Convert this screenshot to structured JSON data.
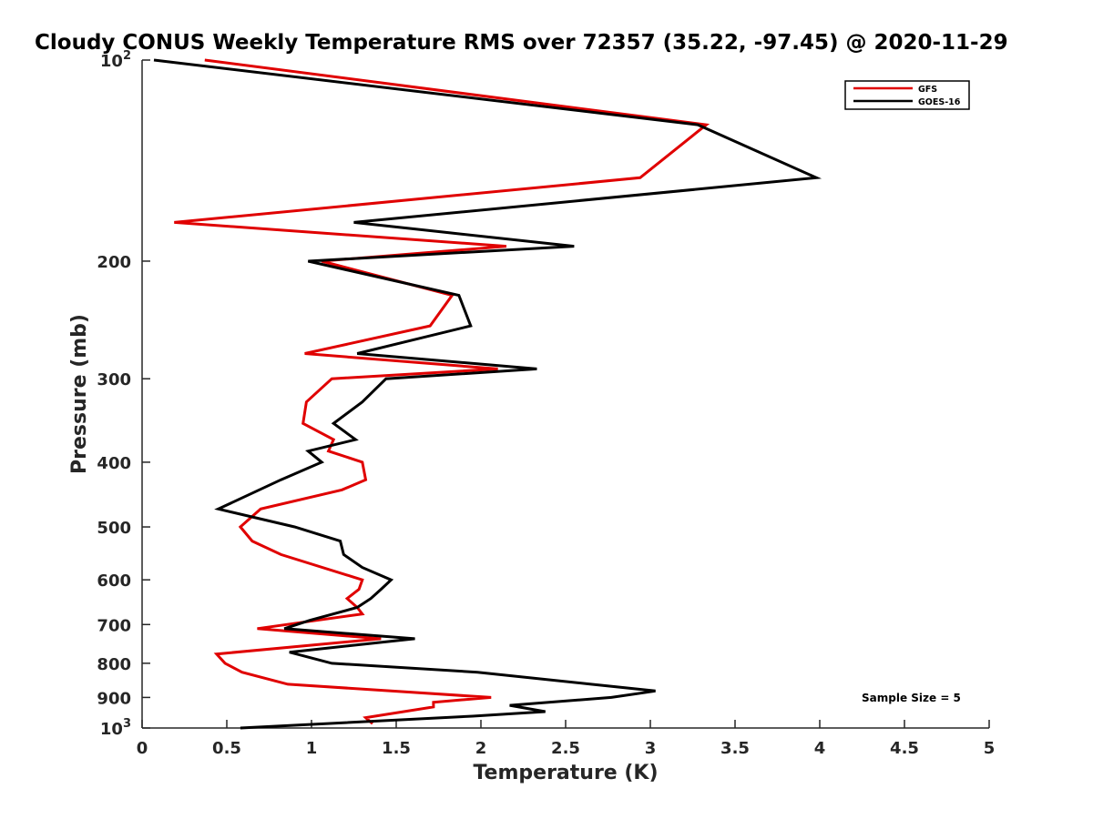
{
  "chart_data": {
    "type": "line",
    "title": "Cloudy CONUS Weekly Temperature RMS over 72357 (35.22, -97.45) @ 2020-11-29",
    "xlabel": "Temperature (K)",
    "ylabel": "Pressure (mb)",
    "xlim": [
      0,
      5
    ],
    "ylim": [
      100,
      1000
    ],
    "yscale": "log",
    "y_reversed": true,
    "x_ticks": [
      "0",
      "0.5",
      "1",
      "1.5",
      "2",
      "2.5",
      "3",
      "3.5",
      "4",
      "4.5",
      "5"
    ],
    "y_ticks": [
      {
        "value": 100,
        "base": "10",
        "exp": "2"
      },
      {
        "value": 200,
        "label": "200"
      },
      {
        "value": 300,
        "label": "300"
      },
      {
        "value": 400,
        "label": "400"
      },
      {
        "value": 500,
        "label": "500"
      },
      {
        "value": 600,
        "label": "600"
      },
      {
        "value": 700,
        "label": "700"
      },
      {
        "value": 800,
        "label": "800"
      },
      {
        "value": 900,
        "label": "900"
      },
      {
        "value": 1000,
        "base": "10",
        "exp": "3"
      }
    ],
    "grid": false,
    "legend_position": "top-right",
    "annotation": "Sample Size = 5",
    "series": [
      {
        "name": "GFS",
        "color": "#e00000",
        "points": [
          [
            0.37,
            100
          ],
          [
            3.33,
            125
          ],
          [
            2.94,
            150
          ],
          [
            0.19,
            175
          ],
          [
            2.15,
            190
          ],
          [
            1.06,
            200
          ],
          [
            1.83,
            225
          ],
          [
            1.7,
            250
          ],
          [
            0.96,
            275
          ],
          [
            2.1,
            290
          ],
          [
            1.12,
            300
          ],
          [
            0.97,
            325
          ],
          [
            0.95,
            350
          ],
          [
            1.13,
            370
          ],
          [
            1.1,
            385
          ],
          [
            1.3,
            400
          ],
          [
            1.32,
            425
          ],
          [
            1.18,
            440
          ],
          [
            0.7,
            470
          ],
          [
            0.58,
            500
          ],
          [
            0.65,
            525
          ],
          [
            0.82,
            550
          ],
          [
            1.3,
            600
          ],
          [
            1.28,
            620
          ],
          [
            1.21,
            640
          ],
          [
            1.27,
            660
          ],
          [
            1.3,
            675
          ],
          [
            0.68,
            710
          ],
          [
            1.41,
            735
          ],
          [
            0.44,
            775
          ],
          [
            0.49,
            800
          ],
          [
            0.59,
            825
          ],
          [
            0.86,
            860
          ],
          [
            2.06,
            900
          ],
          [
            1.72,
            915
          ],
          [
            1.72,
            930
          ],
          [
            1.32,
            965
          ],
          [
            1.36,
            985
          ]
        ]
      },
      {
        "name": "GOES-16",
        "color": "#000000",
        "points": [
          [
            0.07,
            100
          ],
          [
            3.28,
            125
          ],
          [
            3.98,
            150
          ],
          [
            1.25,
            175
          ],
          [
            2.55,
            190
          ],
          [
            0.98,
            200
          ],
          [
            1.87,
            225
          ],
          [
            1.94,
            250
          ],
          [
            1.27,
            275
          ],
          [
            2.33,
            290
          ],
          [
            1.44,
            300
          ],
          [
            1.3,
            325
          ],
          [
            1.13,
            350
          ],
          [
            1.26,
            370
          ],
          [
            0.98,
            385
          ],
          [
            1.06,
            400
          ],
          [
            0.82,
            425
          ],
          [
            0.45,
            470
          ],
          [
            0.9,
            500
          ],
          [
            1.17,
            525
          ],
          [
            1.19,
            550
          ],
          [
            1.3,
            575
          ],
          [
            1.47,
            600
          ],
          [
            1.41,
            620
          ],
          [
            1.35,
            640
          ],
          [
            1.27,
            660
          ],
          [
            0.99,
            690
          ],
          [
            0.84,
            710
          ],
          [
            1.61,
            735
          ],
          [
            0.87,
            770
          ],
          [
            1.12,
            800
          ],
          [
            1.98,
            825
          ],
          [
            2.65,
            860
          ],
          [
            3.03,
            880
          ],
          [
            2.77,
            900
          ],
          [
            2.17,
            925
          ],
          [
            2.38,
            945
          ],
          [
            1.95,
            960
          ],
          [
            0.58,
            1000
          ]
        ]
      }
    ]
  }
}
